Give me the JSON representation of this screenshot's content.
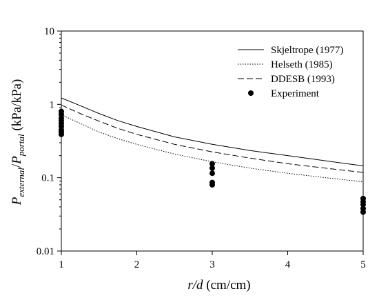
{
  "chart_data": {
    "type": "line",
    "xlabel": {
      "var": "r/d",
      "unit": " (cm/cm)"
    },
    "ylabel": {
      "var1": "P",
      "sub1": "external",
      "sep": "/",
      "var2": "P",
      "sub2": "portal",
      "unit": " (kPa/kPa)"
    },
    "xlim": [
      1,
      5
    ],
    "ylim": [
      0.01,
      10
    ],
    "yscale": "log",
    "grid": false,
    "legend_position": "top-right",
    "xticks": [
      {
        "value": 1,
        "label": "1"
      },
      {
        "value": 2,
        "label": "2"
      },
      {
        "value": 3,
        "label": "3"
      },
      {
        "value": 4,
        "label": "4"
      },
      {
        "value": 5,
        "label": "5"
      }
    ],
    "yticks": [
      {
        "value": 0.01,
        "label": "0.01"
      },
      {
        "value": 0.1,
        "label": "0.1"
      },
      {
        "value": 1,
        "label": "1"
      },
      {
        "value": 10,
        "label": "10"
      }
    ],
    "series": [
      {
        "name": "Skjeltrope (1977)",
        "style": "solid",
        "color": "#000000",
        "x": [
          1.0,
          1.25,
          1.5,
          1.75,
          2.0,
          2.5,
          3.0,
          3.5,
          4.0,
          4.5,
          5.0
        ],
        "y": [
          1.22,
          0.96,
          0.75,
          0.6,
          0.5,
          0.36,
          0.285,
          0.235,
          0.2,
          0.17,
          0.145
        ]
      },
      {
        "name": "Helseth (1985)",
        "style": "dotted",
        "color": "#000000",
        "x": [
          1.0,
          1.25,
          1.5,
          1.75,
          2.0,
          2.5,
          3.0,
          3.5,
          4.0,
          4.5,
          5.0
        ],
        "y": [
          0.72,
          0.55,
          0.42,
          0.34,
          0.285,
          0.21,
          0.165,
          0.135,
          0.115,
          0.1,
          0.088
        ]
      },
      {
        "name": "DDESB (1993)",
        "style": "dashed",
        "color": "#000000",
        "x": [
          1.0,
          1.25,
          1.5,
          1.75,
          2.0,
          2.5,
          3.0,
          3.5,
          4.0,
          4.5,
          5.0
        ],
        "y": [
          0.98,
          0.75,
          0.59,
          0.47,
          0.39,
          0.285,
          0.225,
          0.185,
          0.155,
          0.135,
          0.118
        ]
      },
      {
        "name": "Experiment",
        "style": "markers",
        "color": "#000000",
        "x": [
          1,
          1,
          1,
          1,
          1,
          1,
          1,
          1,
          1,
          3,
          3,
          3,
          3,
          3,
          5,
          5,
          5,
          5,
          5
        ],
        "y": [
          0.8,
          0.73,
          0.65,
          0.6,
          0.55,
          0.5,
          0.45,
          0.42,
          0.39,
          0.155,
          0.135,
          0.115,
          0.086,
          0.08,
          0.052,
          0.047,
          0.043,
          0.038,
          0.034
        ]
      }
    ]
  }
}
